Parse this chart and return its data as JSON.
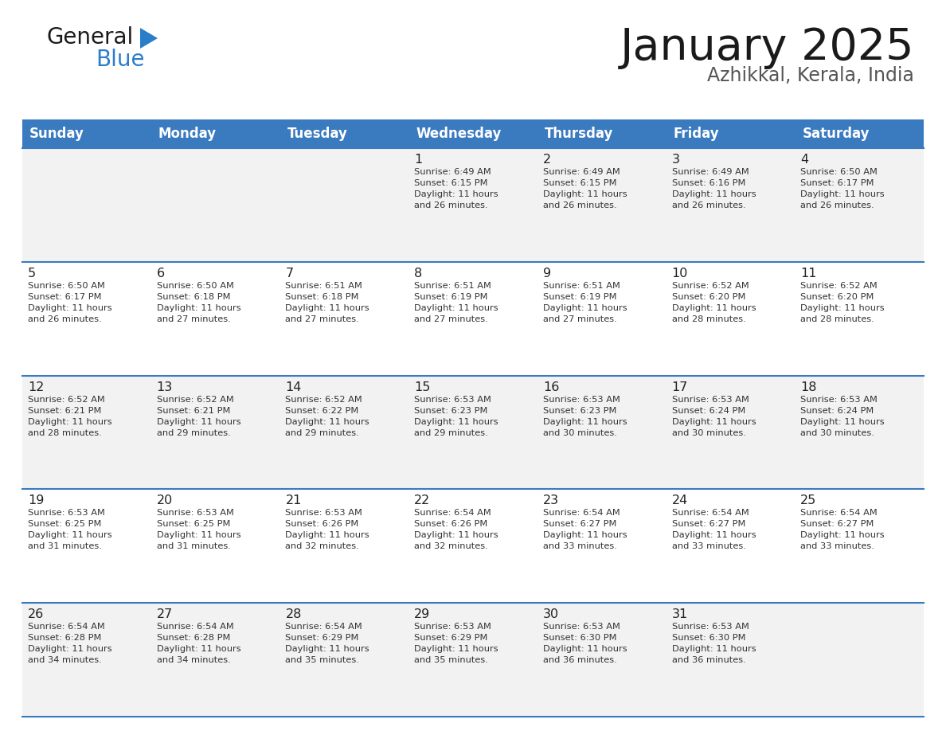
{
  "title": "January 2025",
  "subtitle": "Azhikkal, Kerala, India",
  "header_bg": "#3a7abf",
  "header_text": "#ffffff",
  "day_names": [
    "Sunday",
    "Monday",
    "Tuesday",
    "Wednesday",
    "Thursday",
    "Friday",
    "Saturday"
  ],
  "header_font_size": 12,
  "title_font_size": 40,
  "subtitle_font_size": 17,
  "cell_bg_odd": "#f2f2f2",
  "cell_bg_even": "#ffffff",
  "day_num_color": "#222222",
  "text_color": "#333333",
  "line_color": "#3a7abf",
  "logo_general_color": "#1a1a1a",
  "logo_blue_color": "#2a7dc9",
  "logo_triangle_color": "#2a7dc9",
  "calendar": [
    [
      {
        "day": "",
        "sunrise": "",
        "sunset": "",
        "daylight": ""
      },
      {
        "day": "",
        "sunrise": "",
        "sunset": "",
        "daylight": ""
      },
      {
        "day": "",
        "sunrise": "",
        "sunset": "",
        "daylight": ""
      },
      {
        "day": "1",
        "sunrise": "6:49 AM",
        "sunset": "6:15 PM",
        "daylight_hrs": "11",
        "daylight_min": "26"
      },
      {
        "day": "2",
        "sunrise": "6:49 AM",
        "sunset": "6:15 PM",
        "daylight_hrs": "11",
        "daylight_min": "26"
      },
      {
        "day": "3",
        "sunrise": "6:49 AM",
        "sunset": "6:16 PM",
        "daylight_hrs": "11",
        "daylight_min": "26"
      },
      {
        "day": "4",
        "sunrise": "6:50 AM",
        "sunset": "6:17 PM",
        "daylight_hrs": "11",
        "daylight_min": "26"
      }
    ],
    [
      {
        "day": "5",
        "sunrise": "6:50 AM",
        "sunset": "6:17 PM",
        "daylight_hrs": "11",
        "daylight_min": "26"
      },
      {
        "day": "6",
        "sunrise": "6:50 AM",
        "sunset": "6:18 PM",
        "daylight_hrs": "11",
        "daylight_min": "27"
      },
      {
        "day": "7",
        "sunrise": "6:51 AM",
        "sunset": "6:18 PM",
        "daylight_hrs": "11",
        "daylight_min": "27"
      },
      {
        "day": "8",
        "sunrise": "6:51 AM",
        "sunset": "6:19 PM",
        "daylight_hrs": "11",
        "daylight_min": "27"
      },
      {
        "day": "9",
        "sunrise": "6:51 AM",
        "sunset": "6:19 PM",
        "daylight_hrs": "11",
        "daylight_min": "27"
      },
      {
        "day": "10",
        "sunrise": "6:52 AM",
        "sunset": "6:20 PM",
        "daylight_hrs": "11",
        "daylight_min": "28"
      },
      {
        "day": "11",
        "sunrise": "6:52 AM",
        "sunset": "6:20 PM",
        "daylight_hrs": "11",
        "daylight_min": "28"
      }
    ],
    [
      {
        "day": "12",
        "sunrise": "6:52 AM",
        "sunset": "6:21 PM",
        "daylight_hrs": "11",
        "daylight_min": "28"
      },
      {
        "day": "13",
        "sunrise": "6:52 AM",
        "sunset": "6:21 PM",
        "daylight_hrs": "11",
        "daylight_min": "29"
      },
      {
        "day": "14",
        "sunrise": "6:52 AM",
        "sunset": "6:22 PM",
        "daylight_hrs": "11",
        "daylight_min": "29"
      },
      {
        "day": "15",
        "sunrise": "6:53 AM",
        "sunset": "6:23 PM",
        "daylight_hrs": "11",
        "daylight_min": "29"
      },
      {
        "day": "16",
        "sunrise": "6:53 AM",
        "sunset": "6:23 PM",
        "daylight_hrs": "11",
        "daylight_min": "30"
      },
      {
        "day": "17",
        "sunrise": "6:53 AM",
        "sunset": "6:24 PM",
        "daylight_hrs": "11",
        "daylight_min": "30"
      },
      {
        "day": "18",
        "sunrise": "6:53 AM",
        "sunset": "6:24 PM",
        "daylight_hrs": "11",
        "daylight_min": "30"
      }
    ],
    [
      {
        "day": "19",
        "sunrise": "6:53 AM",
        "sunset": "6:25 PM",
        "daylight_hrs": "11",
        "daylight_min": "31"
      },
      {
        "day": "20",
        "sunrise": "6:53 AM",
        "sunset": "6:25 PM",
        "daylight_hrs": "11",
        "daylight_min": "31"
      },
      {
        "day": "21",
        "sunrise": "6:53 AM",
        "sunset": "6:26 PM",
        "daylight_hrs": "11",
        "daylight_min": "32"
      },
      {
        "day": "22",
        "sunrise": "6:54 AM",
        "sunset": "6:26 PM",
        "daylight_hrs": "11",
        "daylight_min": "32"
      },
      {
        "day": "23",
        "sunrise": "6:54 AM",
        "sunset": "6:27 PM",
        "daylight_hrs": "11",
        "daylight_min": "33"
      },
      {
        "day": "24",
        "sunrise": "6:54 AM",
        "sunset": "6:27 PM",
        "daylight_hrs": "11",
        "daylight_min": "33"
      },
      {
        "day": "25",
        "sunrise": "6:54 AM",
        "sunset": "6:27 PM",
        "daylight_hrs": "11",
        "daylight_min": "33"
      }
    ],
    [
      {
        "day": "26",
        "sunrise": "6:54 AM",
        "sunset": "6:28 PM",
        "daylight_hrs": "11",
        "daylight_min": "34"
      },
      {
        "day": "27",
        "sunrise": "6:54 AM",
        "sunset": "6:28 PM",
        "daylight_hrs": "11",
        "daylight_min": "34"
      },
      {
        "day": "28",
        "sunrise": "6:54 AM",
        "sunset": "6:29 PM",
        "daylight_hrs": "11",
        "daylight_min": "35"
      },
      {
        "day": "29",
        "sunrise": "6:53 AM",
        "sunset": "6:29 PM",
        "daylight_hrs": "11",
        "daylight_min": "35"
      },
      {
        "day": "30",
        "sunrise": "6:53 AM",
        "sunset": "6:30 PM",
        "daylight_hrs": "11",
        "daylight_min": "36"
      },
      {
        "day": "31",
        "sunrise": "6:53 AM",
        "sunset": "6:30 PM",
        "daylight_hrs": "11",
        "daylight_min": "36"
      },
      {
        "day": "",
        "sunrise": "",
        "sunset": "",
        "daylight_hrs": "",
        "daylight_min": ""
      }
    ]
  ]
}
